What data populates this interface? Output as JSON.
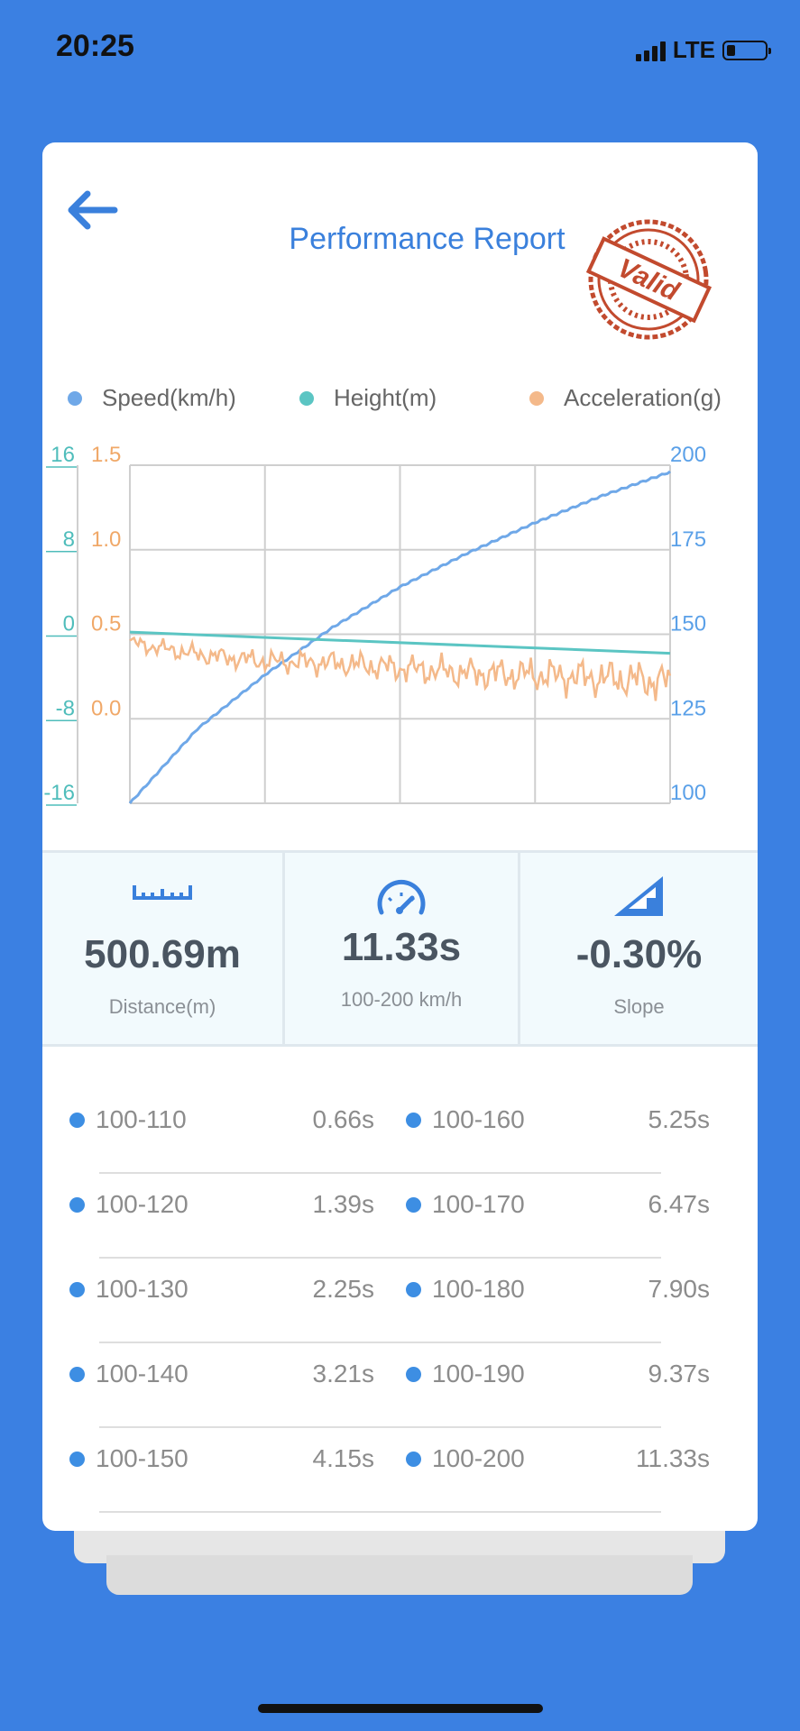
{
  "status": {
    "time": "20:25",
    "network": "LTE"
  },
  "header": {
    "title": "Performance Report",
    "stamp_text": "Valid"
  },
  "legend": [
    {
      "label": "Speed(km/h)",
      "color": "#6fa8e8"
    },
    {
      "label": "Height(m)",
      "color": "#5bc5c3"
    },
    {
      "label": "Acceleration(g)",
      "color": "#f4b98a"
    }
  ],
  "chart_data": {
    "type": "line",
    "series": [
      {
        "name": "Speed(km/h)",
        "axis": "right",
        "color": "#6fa8e8",
        "x": [
          0,
          0.5,
          1,
          1.5,
          2,
          2.5,
          3,
          3.5,
          4
        ],
        "values": [
          100,
          122,
          138,
          152,
          164,
          174,
          183,
          191,
          198
        ]
      },
      {
        "name": "Height(m)",
        "axis": "left-outer",
        "color": "#5bc5c3",
        "x": [
          0,
          4
        ],
        "values": [
          0.2,
          -1.8
        ]
      },
      {
        "name": "Acceleration(g)",
        "axis": "left-inner",
        "color": "#f4b98a",
        "x": [
          0,
          0.5,
          1,
          1.5,
          2,
          2.5,
          3,
          3.5,
          4
        ],
        "values": [
          0.45,
          0.38,
          0.34,
          0.33,
          0.3,
          0.27,
          0.26,
          0.24,
          0.22
        ]
      }
    ],
    "axes": {
      "left_outer": {
        "ticks": [
          "16",
          "8",
          "0",
          "-8",
          "-16"
        ],
        "ylim": [
          -16,
          16
        ],
        "color": "#4fbdbb"
      },
      "left_inner": {
        "ticks": [
          "1.5",
          "1.0",
          "0.5",
          "0.0"
        ],
        "ylim": [
          -0.5,
          1.5
        ],
        "color": "#f0a868"
      },
      "right": {
        "ticks": [
          "200",
          "175",
          "150",
          "125",
          "100"
        ],
        "ylim": [
          100,
          200
        ],
        "color": "#5aa0e8"
      }
    },
    "grid": true
  },
  "stats": [
    {
      "value": "500.69m",
      "label": "Distance(m)",
      "icon": "ruler-icon"
    },
    {
      "value": "11.33s",
      "label": "100-200 km/h",
      "icon": "speedometer-icon"
    },
    {
      "value": "-0.30%",
      "label": "Slope",
      "icon": "slope-icon"
    }
  ],
  "splits": [
    {
      "left_range": "100-110",
      "left_time": "0.66s",
      "right_range": "100-160",
      "right_time": "5.25s"
    },
    {
      "left_range": "100-120",
      "left_time": "1.39s",
      "right_range": "100-170",
      "right_time": "6.47s"
    },
    {
      "left_range": "100-130",
      "left_time": "2.25s",
      "right_range": "100-180",
      "right_time": "7.90s"
    },
    {
      "left_range": "100-140",
      "left_time": "3.21s",
      "right_range": "100-190",
      "right_time": "9.37s"
    },
    {
      "left_range": "100-150",
      "left_time": "4.15s",
      "right_range": "100-200",
      "right_time": "11.33s"
    }
  ],
  "colors": {
    "background": "#3b80e2",
    "accent": "#3a80dc",
    "stamp": "#c24a2e"
  }
}
